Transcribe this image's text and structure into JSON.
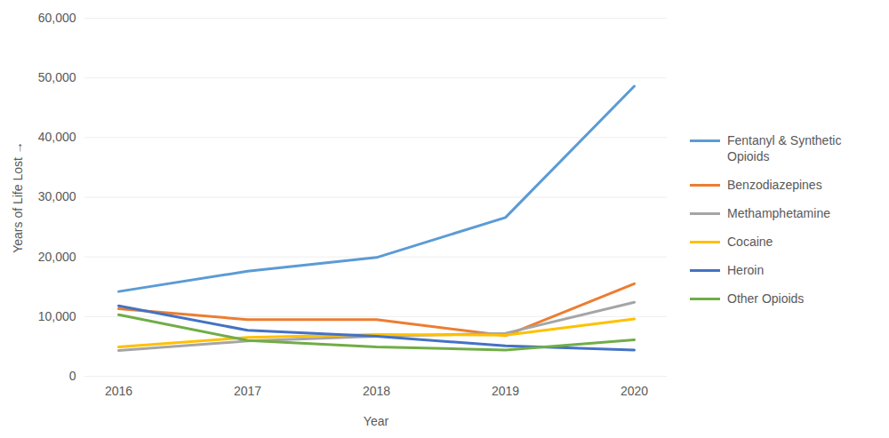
{
  "chart_data": {
    "type": "line",
    "x_label": "Year",
    "y_label": "Years of Life Lost",
    "categories": [
      "2016",
      "2017",
      "2018",
      "2019",
      "2020"
    ],
    "series": [
      {
        "name": "Fentanyl & Synthetic Opioids",
        "color": "#5B9BD5",
        "values": [
          14200,
          17600,
          19900,
          26600,
          48600
        ]
      },
      {
        "name": "Benzodiazepines",
        "color": "#ED7D31",
        "values": [
          11300,
          9500,
          9500,
          6800,
          15500
        ]
      },
      {
        "name": "Methamphetamine",
        "color": "#A5A5A5",
        "values": [
          4300,
          5900,
          6700,
          7200,
          12400
        ]
      },
      {
        "name": "Cocaine",
        "color": "#FFC000",
        "values": [
          4900,
          6500,
          7000,
          6900,
          9600
        ]
      },
      {
        "name": "Heroin",
        "color": "#4472C4",
        "values": [
          11800,
          7700,
          6700,
          5100,
          4400
        ]
      },
      {
        "name": "Other Opioids",
        "color": "#70AD47",
        "values": [
          10300,
          6000,
          4900,
          4400,
          6100
        ]
      }
    ],
    "ylim": [
      0,
      60000
    ],
    "yticks": [
      0,
      {
        "value": 10000,
        "label": "10,000"
      },
      {
        "value": 20000,
        "label": "20,000"
      },
      {
        "value": 30000,
        "label": "30,000"
      },
      {
        "value": 40000,
        "label": "40,000"
      },
      {
        "value": 50000,
        "label": "50,000"
      },
      {
        "value": 60000,
        "label": "60,000"
      }
    ],
    "grid": true,
    "legend": "right"
  }
}
